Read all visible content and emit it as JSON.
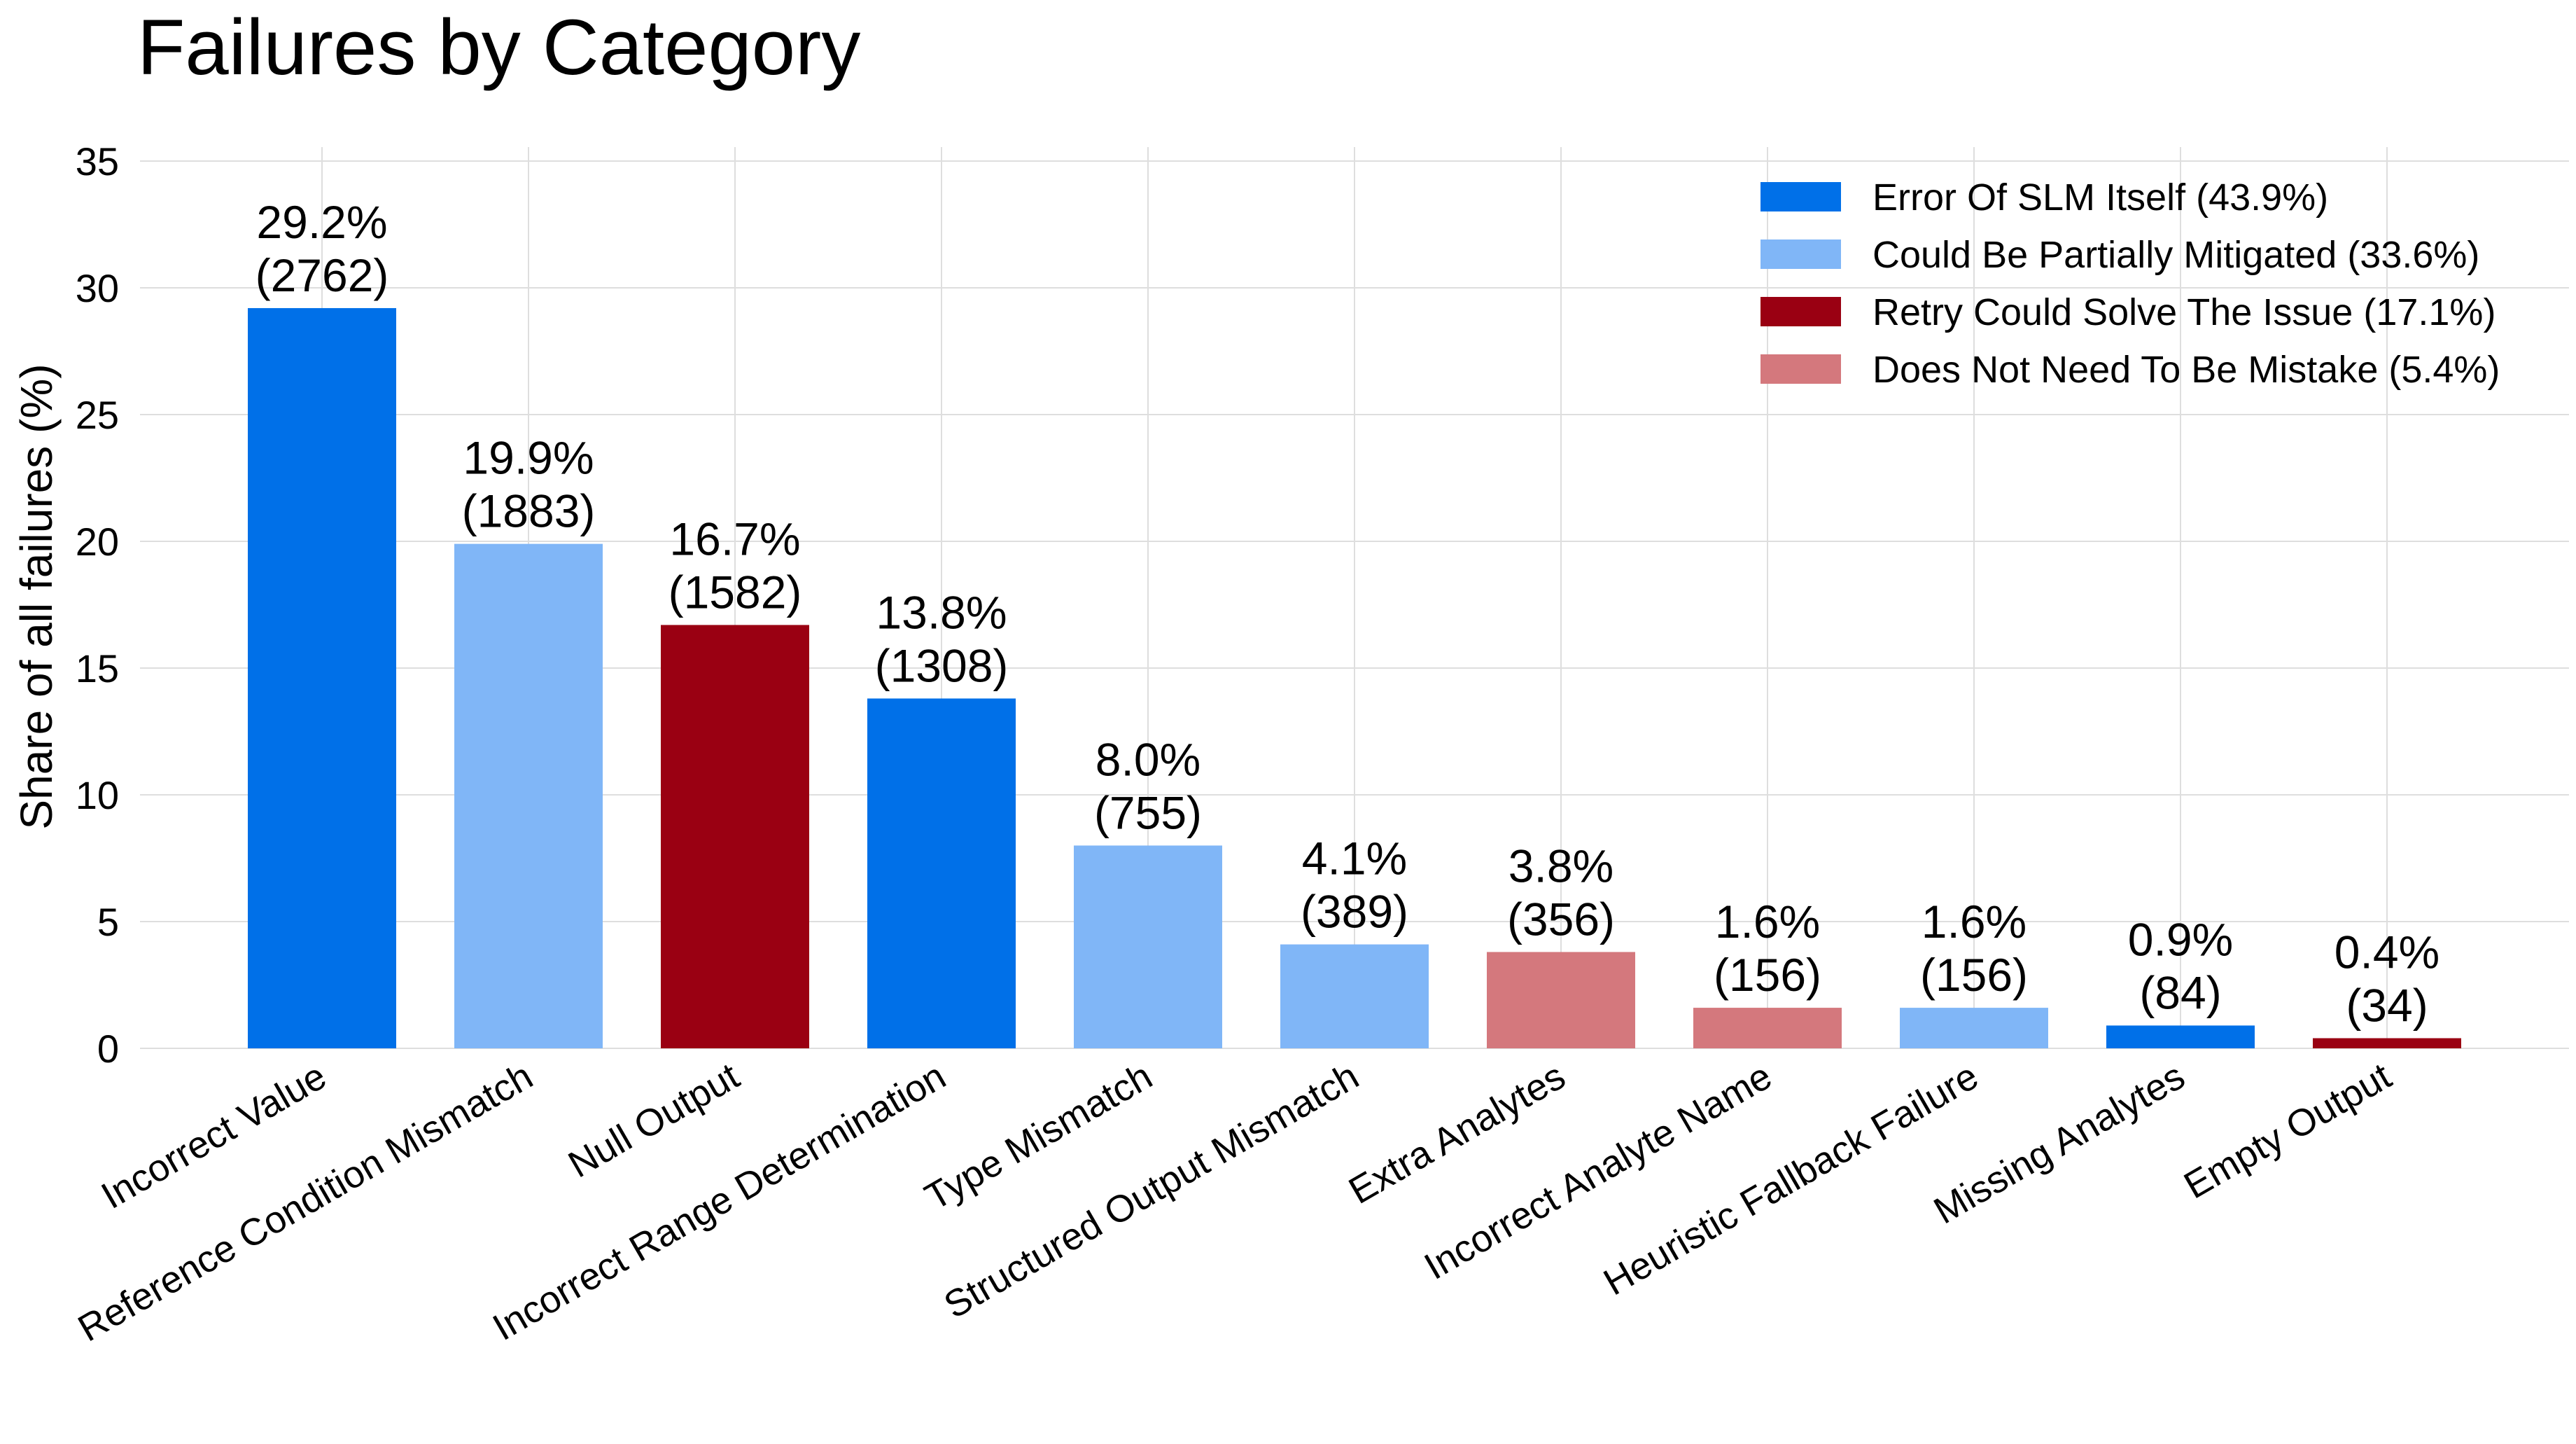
{
  "chart_data": {
    "type": "bar",
    "title": "Failures by Category",
    "xlabel": "",
    "ylabel": "Share of all failures (%)",
    "ylim": [
      0,
      35
    ],
    "yticks": [
      0,
      5,
      10,
      15,
      20,
      25,
      30,
      35
    ],
    "grid": true,
    "legend_position": "top-right",
    "categories": [
      "Incorrect Value",
      "Reference Condition Mismatch",
      "Null Output",
      "Incorrect Range Determination",
      "Type Mismatch",
      "Structured Output Mismatch",
      "Extra Analytes",
      "Incorrect Analyte Name",
      "Heuristic Fallback Failure",
      "Missing Analytes",
      "Empty Output"
    ],
    "values": [
      29.2,
      19.9,
      16.7,
      13.8,
      8.0,
      4.1,
      3.8,
      1.6,
      1.6,
      0.9,
      0.4
    ],
    "counts": [
      2762,
      1883,
      1582,
      1308,
      755,
      389,
      356,
      156,
      156,
      84,
      34
    ],
    "value_labels": [
      "29.2%",
      "19.9%",
      "16.7%",
      "13.8%",
      "8.0%",
      "4.1%",
      "3.8%",
      "1.6%",
      "1.6%",
      "0.9%",
      "0.4%"
    ],
    "count_labels": [
      "(2762)",
      "(1883)",
      "(1582)",
      "(1308)",
      "(755)",
      "(389)",
      "(356)",
      "(156)",
      "(156)",
      "(84)",
      "(34)"
    ],
    "bar_groups": [
      0,
      1,
      2,
      0,
      1,
      1,
      3,
      3,
      1,
      0,
      2
    ],
    "legend": [
      {
        "label": "Error Of SLM Itself (43.9%)",
        "color": "#0070E8"
      },
      {
        "label": "Could Be Partially Mitigated (33.6%)",
        "color": "#80B6F7"
      },
      {
        "label": "Retry Could Solve The Issue (17.1%)",
        "color": "#9A0012"
      },
      {
        "label": "Does Not Need To Be Mistake (5.4%)",
        "color": "#D4787D"
      }
    ]
  }
}
